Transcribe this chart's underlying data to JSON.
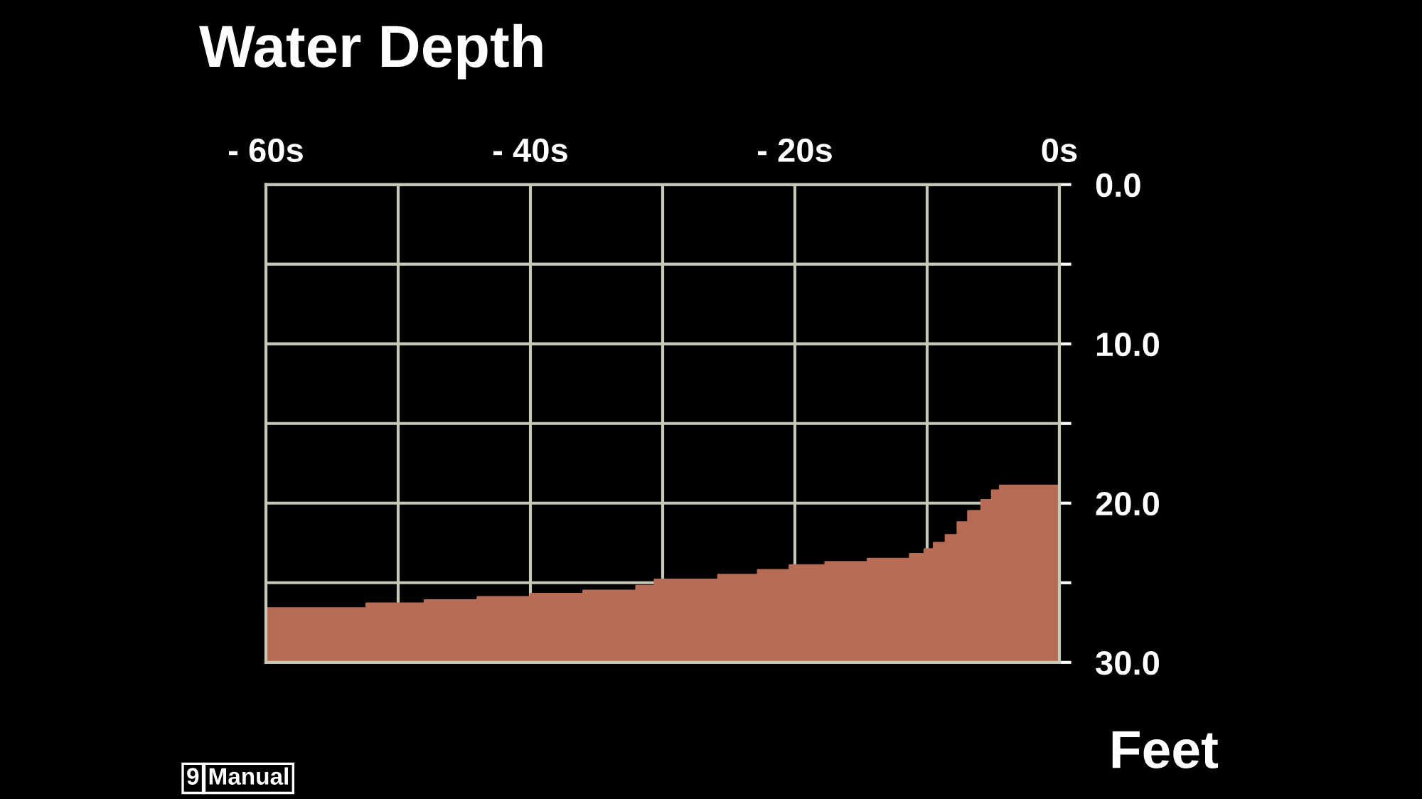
{
  "chart_data": {
    "type": "area",
    "title": "Water Depth",
    "ylabel": "Feet",
    "annotations": [
      "9",
      "Manual"
    ],
    "series": [
      {
        "color": "#b86c55",
        "x": [
          -60,
          -52.4,
          -52.4,
          -48,
          -48,
          -44,
          -44,
          -40,
          -40,
          -36,
          -36,
          -32,
          -32,
          -30.6,
          -30.6,
          -25.8,
          -25.8,
          -22.8,
          -22.8,
          -20.4,
          -20.4,
          -17.7,
          -17.7,
          -14.5,
          -14.5,
          -11.3,
          -11.3,
          -10.2,
          -10.2,
          -9.5,
          -9.5,
          -8.6,
          -8.6,
          -7.7,
          -7.7,
          -6.9,
          -6.9,
          -5.9,
          -5.9,
          -5.1,
          -5.1,
          -4.5,
          -4.5,
          0
        ],
        "values": [
          26.6,
          26.6,
          26.3,
          26.3,
          26.1,
          26.1,
          25.9,
          25.9,
          25.7,
          25.7,
          25.5,
          25.5,
          25.2,
          25.2,
          24.8,
          24.8,
          24.5,
          24.5,
          24.2,
          24.2,
          23.9,
          23.9,
          23.7,
          23.7,
          23.5,
          23.5,
          23.2,
          23.2,
          22.9,
          22.9,
          22.5,
          22.5,
          22.0,
          22.0,
          21.2,
          21.2,
          20.5,
          20.5,
          19.8,
          19.8,
          19.2,
          19.2,
          18.9,
          18.9
        ]
      }
    ],
    "xlim": [
      -60,
      0
    ],
    "ylim": [
      30,
      0
    ],
    "xticks": [
      {
        "value": -60,
        "label": "- 60s"
      },
      {
        "value": -50,
        "label": null
      },
      {
        "value": -40,
        "label": "- 40s"
      },
      {
        "value": -30,
        "label": null
      },
      {
        "value": -20,
        "label": "- 20s"
      },
      {
        "value": -10,
        "label": null
      },
      {
        "value": 0,
        "label": "0s"
      }
    ],
    "yticks": [
      {
        "value": 0,
        "label": "0.0"
      },
      {
        "value": 5,
        "label": null
      },
      {
        "value": 10,
        "label": "10.0"
      },
      {
        "value": 15,
        "label": null
      },
      {
        "value": 20,
        "label": "20.0"
      },
      {
        "value": 25,
        "label": null
      },
      {
        "value": 30,
        "label": "30.0"
      }
    ],
    "grid": true
  }
}
